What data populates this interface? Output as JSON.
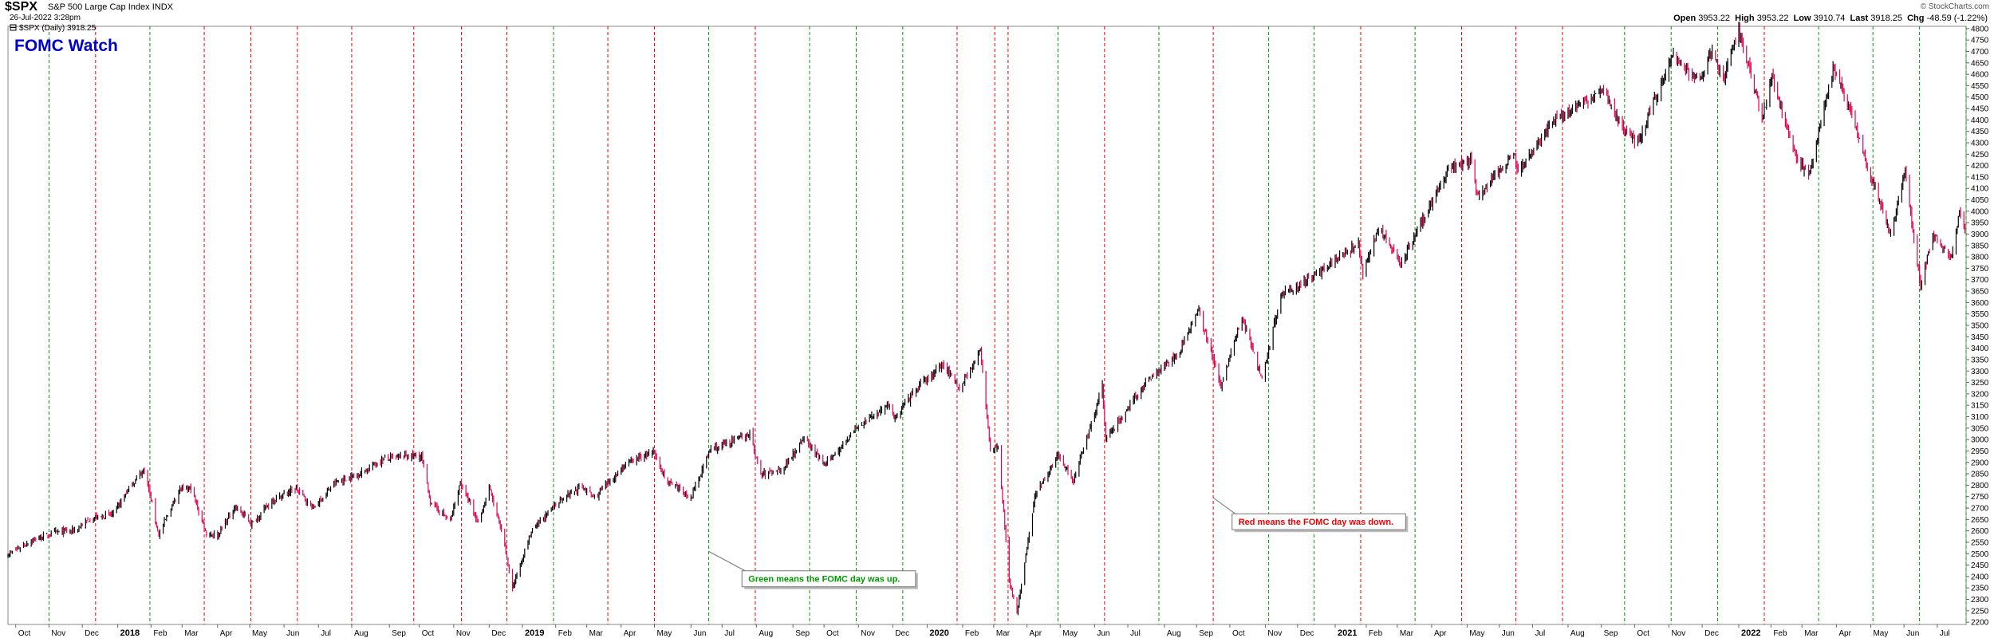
{
  "header": {
    "symbol": "$SPX",
    "name": "S&P 500 Large Cap Index",
    "exchange": "INDX",
    "datetime": "26-Jul-2022 3:28pm",
    "legend_item": "$SPX (Daily) 3918.25",
    "brand": "© StockCharts.com",
    "quote": {
      "open_label": "Open",
      "open": "3953.22",
      "high_label": "High",
      "high": "3953.22",
      "low_label": "Low",
      "low": "3910.74",
      "last_label": "Last",
      "last": "3918.25",
      "chg_label": "Chg",
      "chg": "-48.59 (-1.22%)"
    }
  },
  "colors": {
    "up": "#000000",
    "down": "#e0004d",
    "fomc_up": "#009900",
    "fomc_down": "#ee0000",
    "title": "#0000cc"
  },
  "chart_data": {
    "type": "line",
    "title": "FOMC Watch",
    "ylim": [
      2190,
      4810
    ],
    "xlim": [
      "2017-09-25",
      "2022-07-27"
    ],
    "y_ticks": [
      2200,
      2250,
      2300,
      2350,
      2400,
      2450,
      2500,
      2550,
      2600,
      2650,
      2700,
      2750,
      2800,
      2850,
      2900,
      2950,
      3000,
      3050,
      3100,
      3150,
      3200,
      3250,
      3300,
      3350,
      3400,
      3450,
      3500,
      3550,
      3600,
      3650,
      3700,
      3750,
      3800,
      3850,
      3900,
      3950,
      4000,
      4050,
      4100,
      4150,
      4200,
      4250,
      4300,
      4350,
      4400,
      4450,
      4500,
      4550,
      4600,
      4650,
      4700,
      4750,
      4800
    ],
    "x_ticks": [
      {
        "date": "2017-10-02",
        "label": "Oct",
        "bold": false
      },
      {
        "date": "2017-11-01",
        "label": "Nov",
        "bold": false
      },
      {
        "date": "2017-12-01",
        "label": "Dec",
        "bold": false
      },
      {
        "date": "2018-01-02",
        "label": "2018",
        "bold": true
      },
      {
        "date": "2018-02-01",
        "label": "Feb",
        "bold": false
      },
      {
        "date": "2018-03-01",
        "label": "Mar",
        "bold": false
      },
      {
        "date": "2018-04-02",
        "label": "Apr",
        "bold": false
      },
      {
        "date": "2018-05-01",
        "label": "May",
        "bold": false
      },
      {
        "date": "2018-06-01",
        "label": "Jun",
        "bold": false
      },
      {
        "date": "2018-07-02",
        "label": "Jul",
        "bold": false
      },
      {
        "date": "2018-08-01",
        "label": "Aug",
        "bold": false
      },
      {
        "date": "2018-09-04",
        "label": "Sep",
        "bold": false
      },
      {
        "date": "2018-10-01",
        "label": "Oct",
        "bold": false
      },
      {
        "date": "2018-11-01",
        "label": "Nov",
        "bold": false
      },
      {
        "date": "2018-12-03",
        "label": "Dec",
        "bold": false
      },
      {
        "date": "2019-01-02",
        "label": "2019",
        "bold": true
      },
      {
        "date": "2019-02-01",
        "label": "Feb",
        "bold": false
      },
      {
        "date": "2019-03-01",
        "label": "Mar",
        "bold": false
      },
      {
        "date": "2019-04-01",
        "label": "Apr",
        "bold": false
      },
      {
        "date": "2019-05-01",
        "label": "May",
        "bold": false
      },
      {
        "date": "2019-06-03",
        "label": "Jun",
        "bold": false
      },
      {
        "date": "2019-07-01",
        "label": "Jul",
        "bold": false
      },
      {
        "date": "2019-08-01",
        "label": "Aug",
        "bold": false
      },
      {
        "date": "2019-09-03",
        "label": "Sep",
        "bold": false
      },
      {
        "date": "2019-10-01",
        "label": "Oct",
        "bold": false
      },
      {
        "date": "2019-11-01",
        "label": "Nov",
        "bold": false
      },
      {
        "date": "2019-12-02",
        "label": "Dec",
        "bold": false
      },
      {
        "date": "2020-01-02",
        "label": "2020",
        "bold": true
      },
      {
        "date": "2020-02-03",
        "label": "Feb",
        "bold": false
      },
      {
        "date": "2020-03-02",
        "label": "Mar",
        "bold": false
      },
      {
        "date": "2020-04-01",
        "label": "Apr",
        "bold": false
      },
      {
        "date": "2020-05-01",
        "label": "May",
        "bold": false
      },
      {
        "date": "2020-06-01",
        "label": "Jun",
        "bold": false
      },
      {
        "date": "2020-07-01",
        "label": "Jul",
        "bold": false
      },
      {
        "date": "2020-08-03",
        "label": "Aug",
        "bold": false
      },
      {
        "date": "2020-09-01",
        "label": "Sep",
        "bold": false
      },
      {
        "date": "2020-10-01",
        "label": "Oct",
        "bold": false
      },
      {
        "date": "2020-11-02",
        "label": "Nov",
        "bold": false
      },
      {
        "date": "2020-12-01",
        "label": "Dec",
        "bold": false
      },
      {
        "date": "2021-01-04",
        "label": "2021",
        "bold": true
      },
      {
        "date": "2021-02-01",
        "label": "Feb",
        "bold": false
      },
      {
        "date": "2021-03-01",
        "label": "Mar",
        "bold": false
      },
      {
        "date": "2021-04-01",
        "label": "Apr",
        "bold": false
      },
      {
        "date": "2021-05-03",
        "label": "May",
        "bold": false
      },
      {
        "date": "2021-06-01",
        "label": "Jun",
        "bold": false
      },
      {
        "date": "2021-07-01",
        "label": "Jul",
        "bold": false
      },
      {
        "date": "2021-08-02",
        "label": "Aug",
        "bold": false
      },
      {
        "date": "2021-09-01",
        "label": "Sep",
        "bold": false
      },
      {
        "date": "2021-10-01",
        "label": "Oct",
        "bold": false
      },
      {
        "date": "2021-11-01",
        "label": "Nov",
        "bold": false
      },
      {
        "date": "2021-12-01",
        "label": "Dec",
        "bold": false
      },
      {
        "date": "2022-01-03",
        "label": "2022",
        "bold": true
      },
      {
        "date": "2022-02-01",
        "label": "Feb",
        "bold": false
      },
      {
        "date": "2022-03-01",
        "label": "Mar",
        "bold": false
      },
      {
        "date": "2022-04-01",
        "label": "Apr",
        "bold": false
      },
      {
        "date": "2022-05-02",
        "label": "May",
        "bold": false
      },
      {
        "date": "2022-06-01",
        "label": "Jun",
        "bold": false
      },
      {
        "date": "2022-07-01",
        "label": "Jul",
        "bold": false
      }
    ],
    "fomc_days": [
      {
        "date": "2017-09-20",
        "result": "up"
      },
      {
        "date": "2017-11-01",
        "result": "up"
      },
      {
        "date": "2017-12-13",
        "result": "down"
      },
      {
        "date": "2018-01-31",
        "result": "up"
      },
      {
        "date": "2018-03-21",
        "result": "down"
      },
      {
        "date": "2018-05-02",
        "result": "down"
      },
      {
        "date": "2018-06-13",
        "result": "down"
      },
      {
        "date": "2018-08-01",
        "result": "down"
      },
      {
        "date": "2018-09-26",
        "result": "down"
      },
      {
        "date": "2018-11-08",
        "result": "down"
      },
      {
        "date": "2018-12-19",
        "result": "down"
      },
      {
        "date": "2019-01-30",
        "result": "up"
      },
      {
        "date": "2019-03-20",
        "result": "down"
      },
      {
        "date": "2019-05-01",
        "result": "down"
      },
      {
        "date": "2019-06-19",
        "result": "up"
      },
      {
        "date": "2019-07-31",
        "result": "down"
      },
      {
        "date": "2019-09-18",
        "result": "up"
      },
      {
        "date": "2019-10-30",
        "result": "up"
      },
      {
        "date": "2019-12-11",
        "result": "up"
      },
      {
        "date": "2020-01-29",
        "result": "down"
      },
      {
        "date": "2020-03-03",
        "result": "down"
      },
      {
        "date": "2020-03-15",
        "result": "down"
      },
      {
        "date": "2020-04-29",
        "result": "up"
      },
      {
        "date": "2020-06-10",
        "result": "down"
      },
      {
        "date": "2020-07-29",
        "result": "up"
      },
      {
        "date": "2020-09-16",
        "result": "down"
      },
      {
        "date": "2020-11-05",
        "result": "up"
      },
      {
        "date": "2020-12-16",
        "result": "up"
      },
      {
        "date": "2021-01-27",
        "result": "down"
      },
      {
        "date": "2021-03-17",
        "result": "up"
      },
      {
        "date": "2021-04-28",
        "result": "down"
      },
      {
        "date": "2021-06-16",
        "result": "down"
      },
      {
        "date": "2021-07-28",
        "result": "down"
      },
      {
        "date": "2021-09-22",
        "result": "up"
      },
      {
        "date": "2021-11-03",
        "result": "up"
      },
      {
        "date": "2021-12-15",
        "result": "up"
      },
      {
        "date": "2022-01-26",
        "result": "down"
      },
      {
        "date": "2022-03-16",
        "result": "up"
      },
      {
        "date": "2022-05-04",
        "result": "up"
      },
      {
        "date": "2022-06-15",
        "result": "up"
      },
      {
        "date": "2022-07-27",
        "result": "up"
      }
    ],
    "price_path": [
      [
        "2017-09-25",
        2496
      ],
      [
        "2017-10-16",
        2557
      ],
      [
        "2017-11-08",
        2594
      ],
      [
        "2017-11-24",
        2602
      ],
      [
        "2017-12-08",
        2651
      ],
      [
        "2017-12-29",
        2674
      ],
      [
        "2018-01-12",
        2786
      ],
      [
        "2018-01-26",
        2872
      ],
      [
        "2018-02-08",
        2581
      ],
      [
        "2018-02-26",
        2779
      ],
      [
        "2018-03-09",
        2786
      ],
      [
        "2018-03-23",
        2588
      ],
      [
        "2018-04-02",
        2581
      ],
      [
        "2018-04-18",
        2708
      ],
      [
        "2018-05-03",
        2630
      ],
      [
        "2018-05-21",
        2733
      ],
      [
        "2018-06-12",
        2786
      ],
      [
        "2018-06-27",
        2699
      ],
      [
        "2018-07-17",
        2809
      ],
      [
        "2018-08-09",
        2853
      ],
      [
        "2018-08-29",
        2914
      ],
      [
        "2018-09-20",
        2930
      ],
      [
        "2018-10-03",
        2925
      ],
      [
        "2018-10-11",
        2728
      ],
      [
        "2018-10-29",
        2641
      ],
      [
        "2018-11-07",
        2813
      ],
      [
        "2018-11-23",
        2632
      ],
      [
        "2018-12-03",
        2790
      ],
      [
        "2018-12-14",
        2600
      ],
      [
        "2018-12-24",
        2351
      ],
      [
        "2019-01-10",
        2596
      ],
      [
        "2019-02-05",
        2737
      ],
      [
        "2019-02-25",
        2796
      ],
      [
        "2019-03-08",
        2743
      ],
      [
        "2019-04-05",
        2892
      ],
      [
        "2019-04-30",
        2945
      ],
      [
        "2019-05-13",
        2812
      ],
      [
        "2019-06-03",
        2744
      ],
      [
        "2019-06-20",
        2954
      ],
      [
        "2019-07-26",
        3025
      ],
      [
        "2019-08-05",
        2844
      ],
      [
        "2019-08-26",
        2878
      ],
      [
        "2019-09-12",
        3009
      ],
      [
        "2019-10-02",
        2887
      ],
      [
        "2019-10-28",
        3039
      ],
      [
        "2019-11-27",
        3153
      ],
      [
        "2019-12-03",
        3093
      ],
      [
        "2019-12-27",
        3240
      ],
      [
        "2020-01-17",
        3329
      ],
      [
        "2020-01-31",
        3225
      ],
      [
        "2020-02-19",
        3386
      ],
      [
        "2020-02-28",
        2954
      ],
      [
        "2020-03-06",
        2972
      ],
      [
        "2020-03-16",
        2386
      ],
      [
        "2020-03-23",
        2237
      ],
      [
        "2020-04-08",
        2750
      ],
      [
        "2020-04-29",
        2939
      ],
      [
        "2020-05-13",
        2820
      ],
      [
        "2020-06-08",
        3232
      ],
      [
        "2020-06-11",
        3002
      ],
      [
        "2020-07-22",
        3276
      ],
      [
        "2020-08-17",
        3381
      ],
      [
        "2020-09-02",
        3580
      ],
      [
        "2020-09-23",
        3237
      ],
      [
        "2020-10-12",
        3534
      ],
      [
        "2020-10-30",
        3270
      ],
      [
        "2020-11-16",
        3626
      ],
      [
        "2020-12-17",
        3722
      ],
      [
        "2021-01-25",
        3855
      ],
      [
        "2021-01-29",
        3714
      ],
      [
        "2021-02-12",
        3934
      ],
      [
        "2021-03-04",
        3768
      ],
      [
        "2021-04-16",
        4185
      ],
      [
        "2021-05-07",
        4232
      ],
      [
        "2021-05-12",
        4063
      ],
      [
        "2021-06-14",
        4255
      ],
      [
        "2021-06-18",
        4166
      ],
      [
        "2021-07-23",
        4411
      ],
      [
        "2021-08-13",
        4468
      ],
      [
        "2021-09-02",
        4537
      ],
      [
        "2021-09-20",
        4358
      ],
      [
        "2021-10-04",
        4300
      ],
      [
        "2021-11-04",
        4680
      ],
      [
        "2021-11-30",
        4567
      ],
      [
        "2021-12-10",
        4712
      ],
      [
        "2021-12-20",
        4568
      ],
      [
        "2022-01-03",
        4796
      ],
      [
        "2022-01-24",
        4410
      ],
      [
        "2022-02-02",
        4589
      ],
      [
        "2022-02-24",
        4225
      ],
      [
        "2022-03-08",
        4170
      ],
      [
        "2022-03-29",
        4631
      ],
      [
        "2022-04-13",
        4446
      ],
      [
        "2022-05-02",
        4155
      ],
      [
        "2022-05-20",
        3900
      ],
      [
        "2022-06-02",
        4176
      ],
      [
        "2022-06-16",
        3666
      ],
      [
        "2022-06-27",
        3900
      ],
      [
        "2022-07-14",
        3790
      ],
      [
        "2022-07-21",
        3998
      ],
      [
        "2022-07-26",
        3918
      ]
    ],
    "annotations": [
      {
        "text": "Green means the FOMC day was up.",
        "anchor_date": "2019-06-19",
        "anchor_value": 2510,
        "box_date": "2019-07-19",
        "box_value": 2390,
        "color": "#009900"
      },
      {
        "text": "Red means the FOMC day was down.",
        "anchor_date": "2020-09-16",
        "anchor_value": 2745,
        "box_date": "2020-10-03",
        "box_value": 2640,
        "color": "#ee0000"
      }
    ]
  }
}
